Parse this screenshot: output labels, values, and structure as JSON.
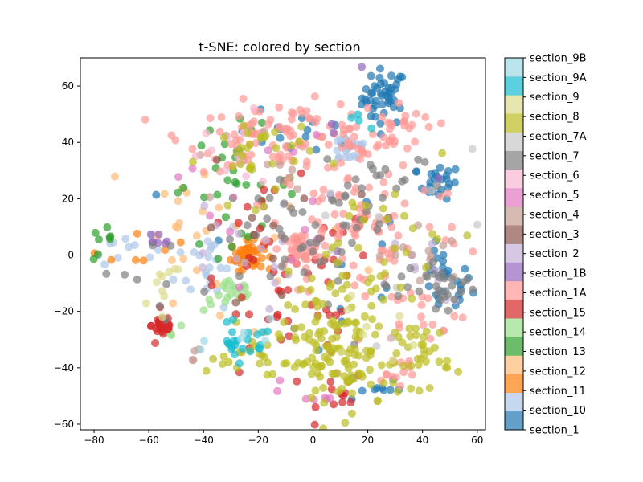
{
  "chart_data": {
    "type": "scatter",
    "title": "t-SNE: colored by section",
    "xlabel": "",
    "ylabel": "",
    "xlim": [
      -85,
      63
    ],
    "ylim": [
      -62,
      70
    ],
    "xticks": [
      -80,
      -60,
      -40,
      -20,
      0,
      20,
      40,
      60
    ],
    "yticks": [
      -60,
      -40,
      -20,
      0,
      20,
      40,
      60
    ],
    "xtick_labels": [
      "−80",
      "−60",
      "−40",
      "−20",
      "0",
      "20",
      "40",
      "60"
    ],
    "ytick_labels": [
      "−60",
      "−40",
      "−20",
      "0",
      "20",
      "40",
      "60"
    ],
    "grid": false,
    "colorbar": {
      "labels": [
        "section_1",
        "section_10",
        "section_11",
        "section_12",
        "section_13",
        "section_14",
        "section_15",
        "section_1A",
        "section_1B",
        "section_2",
        "section_3",
        "section_4",
        "section_5",
        "section_6",
        "section_7",
        "section_7A",
        "section_8",
        "section_9",
        "section_9A",
        "section_9B"
      ],
      "colors": [
        "#1f77b4",
        "#aec7e8",
        "#ff7f0e",
        "#ffbb78",
        "#2ca02c",
        "#98df8a",
        "#d62728",
        "#ff9896",
        "#9467bd",
        "#c5b0d5",
        "#8c564b",
        "#c49c94",
        "#e377c2",
        "#f7b6d2",
        "#7f7f7f",
        "#c7c7c7",
        "#bcbd22",
        "#dbdb8d",
        "#17becf",
        "#9edae5"
      ]
    },
    "clusters": [
      {
        "series": "section_1",
        "cx": 26,
        "cy": 56,
        "sx": 4,
        "sy": 5,
        "n": 45
      },
      {
        "series": "section_1",
        "cx": 46,
        "cy": 26,
        "sx": 4,
        "sy": 3,
        "n": 22
      },
      {
        "series": "section_1",
        "cx": 48,
        "cy": -10,
        "sx": 5,
        "sy": 6,
        "n": 28
      },
      {
        "series": "section_1",
        "cx": -5,
        "cy": 43,
        "sx": 12,
        "sy": 4,
        "n": 16
      },
      {
        "series": "section_1",
        "cx": 22,
        "cy": -47,
        "sx": 5,
        "sy": 3,
        "n": 10
      },
      {
        "series": "section_1",
        "cx": 0,
        "cy": 0,
        "sx": 25,
        "sy": 20,
        "n": 12
      },
      {
        "series": "section_10",
        "cx": 13,
        "cy": 38,
        "sx": 4,
        "sy": 3,
        "n": 22
      },
      {
        "series": "section_10",
        "cx": -38,
        "cy": -2,
        "sx": 6,
        "sy": 8,
        "n": 24
      },
      {
        "series": "section_10",
        "cx": -70,
        "cy": 3,
        "sx": 6,
        "sy": 3,
        "n": 10
      },
      {
        "series": "section_11",
        "cx": -24,
        "cy": 0,
        "sx": 3,
        "sy": 2.5,
        "n": 55
      },
      {
        "series": "section_11",
        "cx": -65,
        "cy": 3,
        "sx": 10,
        "sy": 5,
        "n": 8
      },
      {
        "series": "section_12",
        "cx": -45,
        "cy": 10,
        "sx": 6,
        "sy": 8,
        "n": 14
      },
      {
        "series": "section_12",
        "cx": -20,
        "cy": 0,
        "sx": 30,
        "sy": 22,
        "n": 14
      },
      {
        "series": "section_13",
        "cx": -30,
        "cy": 25,
        "sx": 12,
        "sy": 10,
        "n": 36
      },
      {
        "series": "section_13",
        "cx": -76,
        "cy": 4,
        "sx": 3,
        "sy": 3,
        "n": 8
      },
      {
        "series": "section_14",
        "cx": -30,
        "cy": -14,
        "sx": 5,
        "sy": 3,
        "n": 20
      },
      {
        "series": "section_14",
        "cx": -50,
        "cy": -25,
        "sx": 4,
        "sy": 3,
        "n": 5
      },
      {
        "series": "section_15",
        "cx": -55,
        "cy": -25,
        "sx": 2,
        "sy": 2,
        "n": 30
      },
      {
        "series": "section_15",
        "cx": -10,
        "cy": -15,
        "sx": 18,
        "sy": 18,
        "n": 62
      },
      {
        "series": "section_15",
        "cx": 12,
        "cy": -50,
        "sx": 5,
        "sy": 4,
        "n": 10
      },
      {
        "series": "section_1A",
        "cx": -10,
        "cy": 42,
        "sx": 18,
        "sy": 6,
        "n": 105
      },
      {
        "series": "section_1A",
        "cx": -5,
        "cy": 2,
        "sx": 4,
        "sy": 3,
        "n": 42
      },
      {
        "series": "section_1A",
        "cx": 20,
        "cy": 10,
        "sx": 18,
        "sy": 14,
        "n": 85
      },
      {
        "series": "section_1A",
        "cx": 28,
        "cy": 45,
        "sx": 6,
        "sy": 5,
        "n": 32
      },
      {
        "series": "section_1A",
        "cx": 40,
        "cy": -20,
        "sx": 8,
        "sy": 5,
        "n": 18
      },
      {
        "series": "section_1A",
        "cx": 30,
        "cy": -42,
        "sx": 5,
        "sy": 4,
        "n": 14
      },
      {
        "series": "section_1B",
        "cx": -58,
        "cy": 6,
        "sx": 4,
        "sy": 2,
        "n": 7
      },
      {
        "series": "section_1B",
        "cx": 5,
        "cy": 20,
        "sx": 20,
        "sy": 20,
        "n": 6
      },
      {
        "series": "section_2",
        "cx": -30,
        "cy": 0,
        "sx": 12,
        "sy": 10,
        "n": 16
      },
      {
        "series": "section_2",
        "cx": 40,
        "cy": -5,
        "sx": 8,
        "sy": 6,
        "n": 10
      },
      {
        "series": "section_3",
        "cx": -10,
        "cy": 5,
        "sx": 15,
        "sy": 15,
        "n": 10
      },
      {
        "series": "section_4",
        "cx": -45,
        "cy": -35,
        "sx": 1.5,
        "sy": 1.5,
        "n": 4
      },
      {
        "series": "section_4",
        "cx": 40,
        "cy": 0,
        "sx": 8,
        "sy": 6,
        "n": 12
      },
      {
        "series": "section_4",
        "cx": -25,
        "cy": 30,
        "sx": 10,
        "sy": 10,
        "n": 8
      },
      {
        "series": "section_5",
        "cx": -20,
        "cy": 22,
        "sx": 15,
        "sy": 15,
        "n": 14
      },
      {
        "series": "section_5",
        "cx": 0,
        "cy": -50,
        "sx": 6,
        "sy": 4,
        "n": 8
      },
      {
        "series": "section_6",
        "cx": -30,
        "cy": 35,
        "sx": 10,
        "sy": 8,
        "n": 14
      },
      {
        "series": "section_7",
        "cx": 48,
        "cy": -12,
        "sx": 6,
        "sy": 5,
        "n": 24
      },
      {
        "series": "section_7",
        "cx": 5,
        "cy": 5,
        "sx": 20,
        "sy": 14,
        "n": 58
      },
      {
        "series": "section_7",
        "cx": 28,
        "cy": 28,
        "sx": 12,
        "sy": 5,
        "n": 14
      },
      {
        "series": "section_7",
        "cx": -60,
        "cy": -10,
        "sx": 8,
        "sy": 8,
        "n": 8
      },
      {
        "series": "section_7A",
        "cx": 20,
        "cy": 5,
        "sx": 25,
        "sy": 20,
        "n": 10
      },
      {
        "series": "section_8",
        "cx": 10,
        "cy": -38,
        "sx": 12,
        "sy": 9,
        "n": 95
      },
      {
        "series": "section_8",
        "cx": 40,
        "cy": -35,
        "sx": 5,
        "sy": 6,
        "n": 32
      },
      {
        "series": "section_8",
        "cx": 12,
        "cy": -15,
        "sx": 12,
        "sy": 8,
        "n": 42
      },
      {
        "series": "section_8",
        "cx": -20,
        "cy": 35,
        "sx": 10,
        "sy": 8,
        "n": 32
      },
      {
        "series": "section_8",
        "cx": -15,
        "cy": -35,
        "sx": 12,
        "sy": 5,
        "n": 32
      },
      {
        "series": "section_8",
        "cx": 30,
        "cy": 5,
        "sx": 15,
        "sy": 12,
        "n": 22
      },
      {
        "series": "section_9",
        "cx": -55,
        "cy": -10,
        "sx": 5,
        "sy": 5,
        "n": 10
      },
      {
        "series": "section_9",
        "cx": 20,
        "cy": -25,
        "sx": 10,
        "sy": 10,
        "n": 8
      },
      {
        "series": "section_9A",
        "cx": -28,
        "cy": -31,
        "sx": 3,
        "sy": 3,
        "n": 18
      },
      {
        "series": "section_9A",
        "cx": -20,
        "cy": -32,
        "sx": 3,
        "sy": 3,
        "n": 6
      },
      {
        "series": "section_9A",
        "cx": 18,
        "cy": 50,
        "sx": 3,
        "sy": 2,
        "n": 4
      },
      {
        "series": "section_9B",
        "cx": -20,
        "cy": -30,
        "sx": 8,
        "sy": 6,
        "n": 6
      }
    ]
  }
}
